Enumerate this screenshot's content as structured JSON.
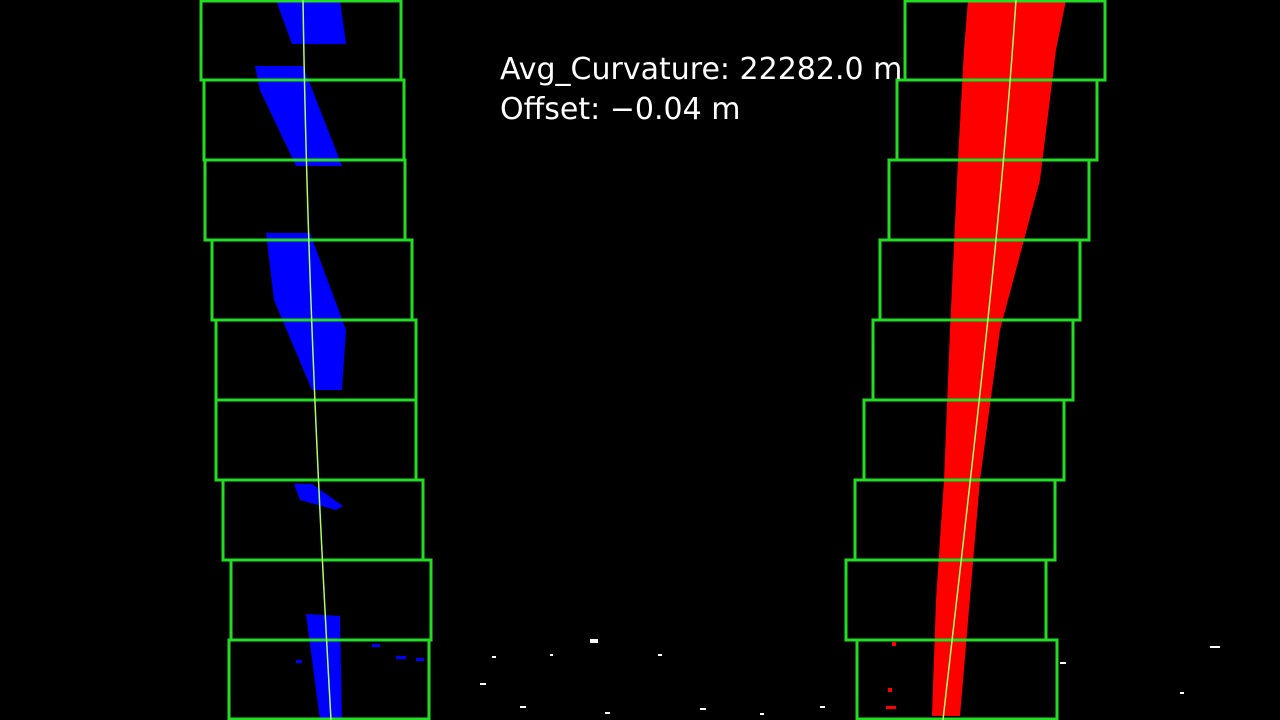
{
  "overlay": {
    "curvature_text": "Avg_Curvature: 22282.0 m",
    "offset_text": "Offset: −0.04 m"
  },
  "colors": {
    "background": "#000000",
    "window_box": "#22dd22",
    "left_lane_pixels": "#0000ff",
    "right_lane_pixels": "#ff0000",
    "fit_line": "#aaff66",
    "text": "#ffffff"
  }
}
